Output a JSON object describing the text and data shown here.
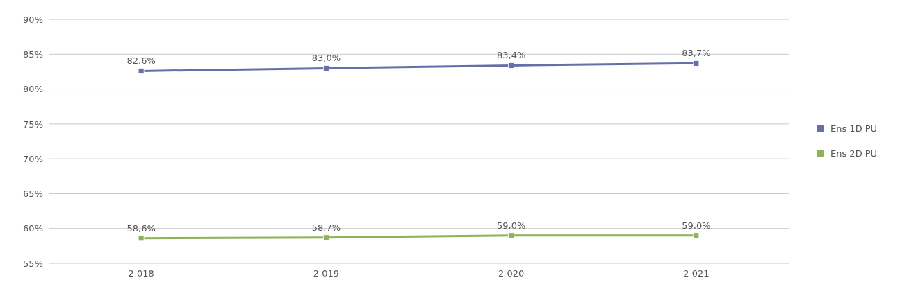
{
  "chart_data": {
    "type": "line",
    "categories": [
      "2 018",
      "2 019",
      "2 020",
      "2 021"
    ],
    "series": [
      {
        "name": "Ens 1D PU",
        "color": "#6670a8",
        "values": [
          82.6,
          83.0,
          83.4,
          83.7
        ],
        "value_labels": [
          "82,6%",
          "83,0%",
          "83,4%",
          "83,7%"
        ]
      },
      {
        "name": "Ens 2D PU",
        "color": "#8fb255",
        "values": [
          58.6,
          58.7,
          59.0,
          59.0
        ],
        "value_labels": [
          "58,6%",
          "58,7%",
          "59,0%",
          "59,0%"
        ]
      }
    ],
    "ylim": [
      55,
      90
    ],
    "yticks": [
      {
        "value": 55,
        "label": "55%"
      },
      {
        "value": 60,
        "label": "60%"
      },
      {
        "value": 65,
        "label": "65%"
      },
      {
        "value": 70,
        "label": "70%"
      },
      {
        "value": 75,
        "label": "75%"
      },
      {
        "value": 80,
        "label": "80%"
      },
      {
        "value": 85,
        "label": "85%"
      },
      {
        "value": 90,
        "label": "90%"
      }
    ],
    "grid": "y",
    "legend": "right",
    "marker": "square",
    "line_style": "solid"
  }
}
